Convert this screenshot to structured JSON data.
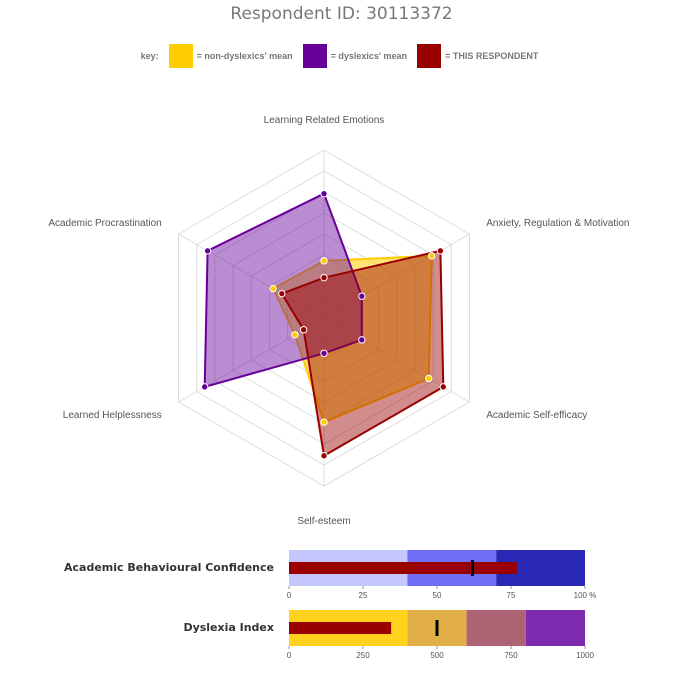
{
  "title": "Respondent ID: 30113372",
  "legend": {
    "key_label": "key:",
    "items": [
      {
        "label": "= non-dyslexics' mean",
        "color": "#ffcc00"
      },
      {
        "label": "= dyslexics' mean",
        "color": "#660099"
      },
      {
        "label": "= THIS RESPONDENT",
        "color": "#990000"
      }
    ]
  },
  "chart_data": [
    {
      "type": "radar",
      "axes": [
        "Learning Related Emotions",
        "Anxiety, Regulation & Motivation",
        "Academic Self-efficacy",
        "Self-esteem",
        "Learned Helplessness",
        "Academic Procrastination"
      ],
      "range": [
        0,
        10
      ],
      "rings": 8,
      "series": [
        {
          "name": "non-dyslexics' mean",
          "color": "#ffcc00",
          "values": [
            3.4,
            7.4,
            7.2,
            6.2,
            2.0,
            3.5
          ]
        },
        {
          "name": "dyslexics' mean",
          "color": "#660099",
          "values": [
            7.4,
            2.6,
            2.6,
            2.1,
            8.2,
            8.0
          ]
        },
        {
          "name": "THIS RESPONDENT",
          "color": "#990000",
          "values": [
            2.4,
            8.0,
            8.2,
            8.2,
            1.4,
            2.9
          ]
        }
      ]
    },
    {
      "type": "bullet",
      "label": "Academic Behavioural Confidence",
      "value": 77,
      "marker": 62,
      "range": [
        0,
        100
      ],
      "bands": [
        {
          "to": 40,
          "color": "#c6c6ff"
        },
        {
          "to": 70,
          "color": "#6e6ef7"
        },
        {
          "to": 100,
          "color": "#2828b4"
        }
      ],
      "bar_color": "#990000",
      "ticks": [
        "0",
        "25",
        "50",
        "75",
        "100 %"
      ],
      "tick_values": [
        0,
        25,
        50,
        75,
        100
      ]
    },
    {
      "type": "bullet",
      "label": "Dyslexia Index",
      "value": 345,
      "marker": 500,
      "range": [
        0,
        1000
      ],
      "bands": [
        {
          "to": 400,
          "color": "#ffd21e"
        },
        {
          "to": 600,
          "color": "#e1ad46"
        },
        {
          "to": 800,
          "color": "#ad6373"
        },
        {
          "to": 1000,
          "color": "#7f2bb0"
        }
      ],
      "bar_color": "#990000",
      "ticks": [
        "0",
        "250",
        "500",
        "750",
        "1000"
      ],
      "tick_values": [
        0,
        250,
        500,
        750,
        1000
      ]
    }
  ]
}
